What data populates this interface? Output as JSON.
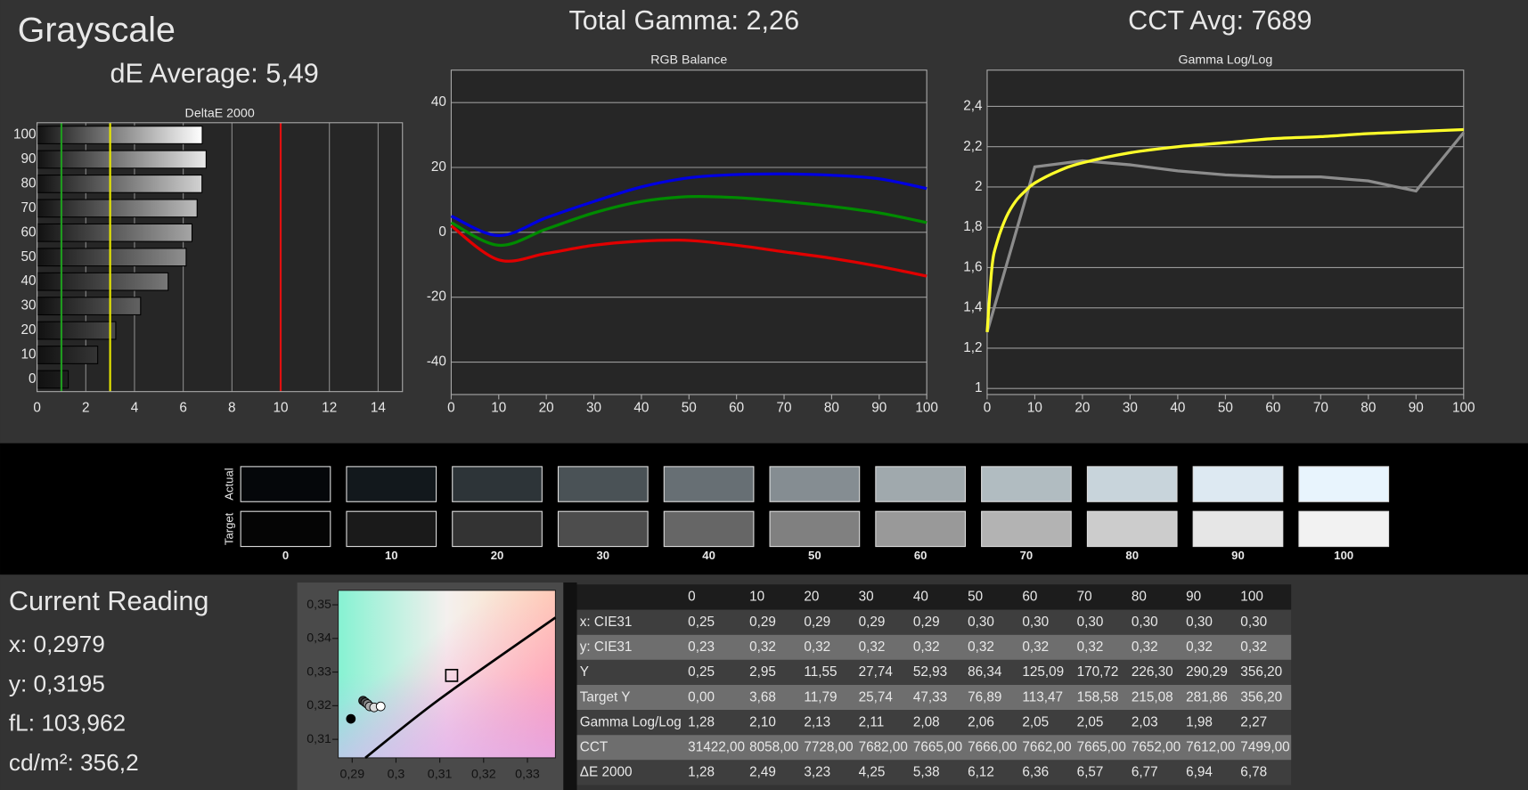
{
  "title": "Grayscale",
  "de_average": "dE Average: 5,49",
  "total_gamma": "Total Gamma: 2,26",
  "cct_avg": "CCT Avg: 7689",
  "chart_data": [
    {
      "type": "bar",
      "orientation": "horizontal",
      "title": "DeltaE 2000",
      "categories": [
        "0",
        "10",
        "20",
        "30",
        "40",
        "50",
        "60",
        "70",
        "80",
        "90",
        "100"
      ],
      "values": [
        1.28,
        2.49,
        3.23,
        4.25,
        5.38,
        6.12,
        6.36,
        6.57,
        6.77,
        6.94,
        6.78
      ],
      "xlim": [
        0,
        15
      ],
      "xticks": [
        0,
        2,
        4,
        6,
        8,
        10,
        12,
        14
      ],
      "grid": true,
      "reference_lines": [
        {
          "value": 1,
          "color": "#1f9a1f"
        },
        {
          "value": 3,
          "color": "#e6e600"
        },
        {
          "value": 10,
          "color": "#e01010"
        }
      ]
    },
    {
      "type": "line",
      "title": "RGB Balance",
      "x": [
        0,
        10,
        20,
        30,
        40,
        50,
        60,
        70,
        80,
        90,
        100
      ],
      "xlim": [
        0,
        100
      ],
      "xticks": [
        0,
        10,
        20,
        30,
        40,
        50,
        60,
        70,
        80,
        90,
        100
      ],
      "ylim": [
        -50,
        50
      ],
      "yticks": [
        -40,
        -20,
        0,
        20,
        40
      ],
      "grid": true,
      "series": [
        {
          "color": "#e00000",
          "smooth": true,
          "values": [
            2,
            -8.5,
            -6.5,
            -4,
            -2.7,
            -2.5,
            -4,
            -6,
            -8,
            -10.5,
            -13.5
          ]
        },
        {
          "color": "#008a00",
          "smooth": true,
          "values": [
            3,
            -4,
            1,
            6,
            9.5,
            11,
            10.7,
            9.5,
            8,
            6,
            3
          ]
        },
        {
          "color": "#0000e0",
          "smooth": true,
          "values": [
            5,
            -1,
            4.5,
            9.5,
            14,
            16.8,
            17.8,
            18,
            17.6,
            16.5,
            13.5
          ]
        }
      ]
    },
    {
      "type": "line",
      "title": "Gamma Log/Log",
      "xlim": [
        0,
        100
      ],
      "xticks": [
        0,
        10,
        20,
        30,
        40,
        50,
        60,
        70,
        80,
        90,
        100
      ],
      "ylim": [
        0.97,
        2.58
      ],
      "yticks": [
        1,
        {
          "value": 1.2,
          "label": "1,2"
        },
        {
          "value": 1.4,
          "label": "1,4"
        },
        {
          "value": 1.6,
          "label": "1,6"
        },
        {
          "value": 1.8,
          "label": "1,8"
        },
        2,
        {
          "value": 2.2,
          "label": "2,2"
        },
        {
          "value": 2.4,
          "label": "2,4"
        }
      ],
      "grid": true,
      "series": [
        {
          "color": "#8c8c8c",
          "smooth": false,
          "x": [
            0,
            10,
            20,
            30,
            40,
            50,
            60,
            70,
            80,
            90,
            100
          ],
          "values": [
            1.28,
            2.1,
            2.13,
            2.11,
            2.08,
            2.06,
            2.05,
            2.05,
            2.03,
            1.98,
            2.27
          ]
        },
        {
          "color": "#ffff2a",
          "smooth": true,
          "x": [
            0,
            1,
            2,
            4,
            6,
            8,
            10,
            15,
            20,
            30,
            40,
            50,
            60,
            70,
            80,
            90,
            100
          ],
          "values": [
            1.28,
            1.6,
            1.72,
            1.85,
            1.93,
            1.98,
            2.02,
            2.08,
            2.12,
            2.17,
            2.2,
            2.22,
            2.24,
            2.25,
            2.265,
            2.275,
            2.285
          ]
        }
      ]
    },
    {
      "type": "scatter",
      "xlim": [
        0.2868,
        0.3364
      ],
      "ylim": [
        0.3045,
        0.3543
      ],
      "xticks": [
        {
          "value": 0.29,
          "label": "0,29"
        },
        {
          "value": 0.3,
          "label": "0,3"
        },
        {
          "value": 0.31,
          "label": "0,31"
        },
        {
          "value": 0.32,
          "label": "0,32"
        },
        {
          "value": 0.33,
          "label": "0,33"
        }
      ],
      "yticks": [
        {
          "value": 0.31,
          "label": "0,31"
        },
        {
          "value": 0.32,
          "label": "0,32"
        },
        {
          "value": 0.33,
          "label": "0,33"
        },
        {
          "value": 0.34,
          "label": "0,34"
        },
        {
          "value": 0.35,
          "label": "0,35"
        }
      ],
      "x": [
        0.2897,
        0.2925,
        0.293,
        0.2935,
        0.294,
        0.295,
        0.2965
      ],
      "values": [
        0.3161,
        0.3215,
        0.321,
        0.3205,
        0.3198,
        0.3195,
        0.3198
      ],
      "colors": [
        "#000000",
        "#333333",
        "#555555",
        "#888888",
        "#aaaaaa",
        "#dddddd",
        "#ffffff"
      ],
      "target": {
        "x": 0.3127,
        "y": 0.329
      },
      "locus": {
        "x": [
          0.293,
          0.31,
          0.3364
        ],
        "y": [
          0.3045,
          0.322,
          0.3462
        ]
      }
    }
  ],
  "swatches": {
    "actual_label": "Actual",
    "target_label": "Target",
    "levels": [
      "0",
      "10",
      "20",
      "30",
      "40",
      "50",
      "60",
      "70",
      "80",
      "90",
      "100"
    ],
    "actual_colors": [
      "#05070a",
      "#12181c",
      "#2d3438",
      "#4a5256",
      "#676f74",
      "#858d92",
      "#a0a9ad",
      "#b1bcc1",
      "#c8d4db",
      "#dde9f2",
      "#e8f4fd"
    ],
    "target_colors": [
      "#050505",
      "#1a1a1a",
      "#333333",
      "#4d4d4d",
      "#666666",
      "#808080",
      "#999999",
      "#b3b3b3",
      "#cccccc",
      "#e6e6e6",
      "#f2f2f2"
    ]
  },
  "current_reading": {
    "title": "Current Reading",
    "lines": [
      "x: 0,2979",
      "y: 0,3195",
      "fL: 103,962",
      "cd/m²: 356,2"
    ]
  },
  "table": {
    "columns": [
      "0",
      "10",
      "20",
      "30",
      "40",
      "50",
      "60",
      "70",
      "80",
      "90",
      "100"
    ],
    "rows": [
      {
        "label": "x: CIE31",
        "cells": [
          "0,25",
          "0,29",
          "0,29",
          "0,29",
          "0,29",
          "0,30",
          "0,30",
          "0,30",
          "0,30",
          "0,30",
          "0,30"
        ]
      },
      {
        "label": "y: CIE31",
        "cells": [
          "0,23",
          "0,32",
          "0,32",
          "0,32",
          "0,32",
          "0,32",
          "0,32",
          "0,32",
          "0,32",
          "0,32",
          "0,32"
        ]
      },
      {
        "label": "Y",
        "cells": [
          "0,25",
          "2,95",
          "11,55",
          "27,74",
          "52,93",
          "86,34",
          "125,09",
          "170,72",
          "226,30",
          "290,29",
          "356,20"
        ]
      },
      {
        "label": "Target Y",
        "cells": [
          "0,00",
          "3,68",
          "11,79",
          "25,74",
          "47,33",
          "76,89",
          "113,47",
          "158,58",
          "215,08",
          "281,86",
          "356,20"
        ]
      },
      {
        "label": "Gamma Log/Log",
        "cells": [
          "1,28",
          "2,10",
          "2,13",
          "2,11",
          "2,08",
          "2,06",
          "2,05",
          "2,05",
          "2,03",
          "1,98",
          "2,27"
        ]
      },
      {
        "label": "CCT",
        "cells": [
          "31422,00",
          "8058,00",
          "7728,00",
          "7682,00",
          "7665,00",
          "7666,00",
          "7662,00",
          "7665,00",
          "7652,00",
          "7612,00",
          "7499,00"
        ]
      },
      {
        "label": "ΔE 2000",
        "cells": [
          "1,28",
          "2,49",
          "3,23",
          "4,25",
          "5,38",
          "6,12",
          "6,36",
          "6,57",
          "6,77",
          "6,94",
          "6,78"
        ]
      }
    ]
  }
}
